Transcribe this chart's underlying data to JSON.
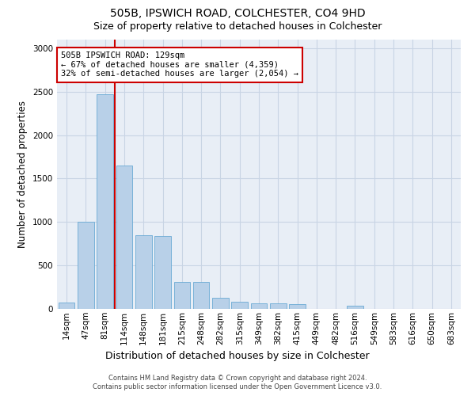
{
  "title1": "505B, IPSWICH ROAD, COLCHESTER, CO4 9HD",
  "title2": "Size of property relative to detached houses in Colchester",
  "xlabel": "Distribution of detached houses by size in Colchester",
  "ylabel": "Number of detached properties",
  "categories": [
    "14sqm",
    "47sqm",
    "81sqm",
    "114sqm",
    "148sqm",
    "181sqm",
    "215sqm",
    "248sqm",
    "282sqm",
    "315sqm",
    "349sqm",
    "382sqm",
    "415sqm",
    "449sqm",
    "482sqm",
    "516sqm",
    "549sqm",
    "583sqm",
    "616sqm",
    "650sqm",
    "683sqm"
  ],
  "values": [
    75,
    1000,
    2470,
    1650,
    850,
    840,
    310,
    310,
    130,
    80,
    60,
    60,
    55,
    0,
    0,
    38,
    0,
    0,
    0,
    0,
    0
  ],
  "bar_color": "#b8d0e8",
  "bar_edge_color": "#6aaad4",
  "grid_color": "#c8d4e4",
  "vline_color": "#cc0000",
  "vline_index": 3.0,
  "annotation_text": "505B IPSWICH ROAD: 129sqm\n← 67% of detached houses are smaller (4,359)\n32% of semi-detached houses are larger (2,054) →",
  "annotation_box_color": "#ffffff",
  "annotation_edge_color": "#cc0000",
  "ylim": [
    0,
    3100
  ],
  "yticks": [
    0,
    500,
    1000,
    1500,
    2000,
    2500,
    3000
  ],
  "footer1": "Contains HM Land Registry data © Crown copyright and database right 2024.",
  "footer2": "Contains public sector information licensed under the Open Government Licence v3.0.",
  "title1_fontsize": 10,
  "title2_fontsize": 9,
  "tick_fontsize": 7.5,
  "ylabel_fontsize": 8.5,
  "xlabel_fontsize": 9,
  "footer_fontsize": 6,
  "annotation_fontsize": 7.5
}
